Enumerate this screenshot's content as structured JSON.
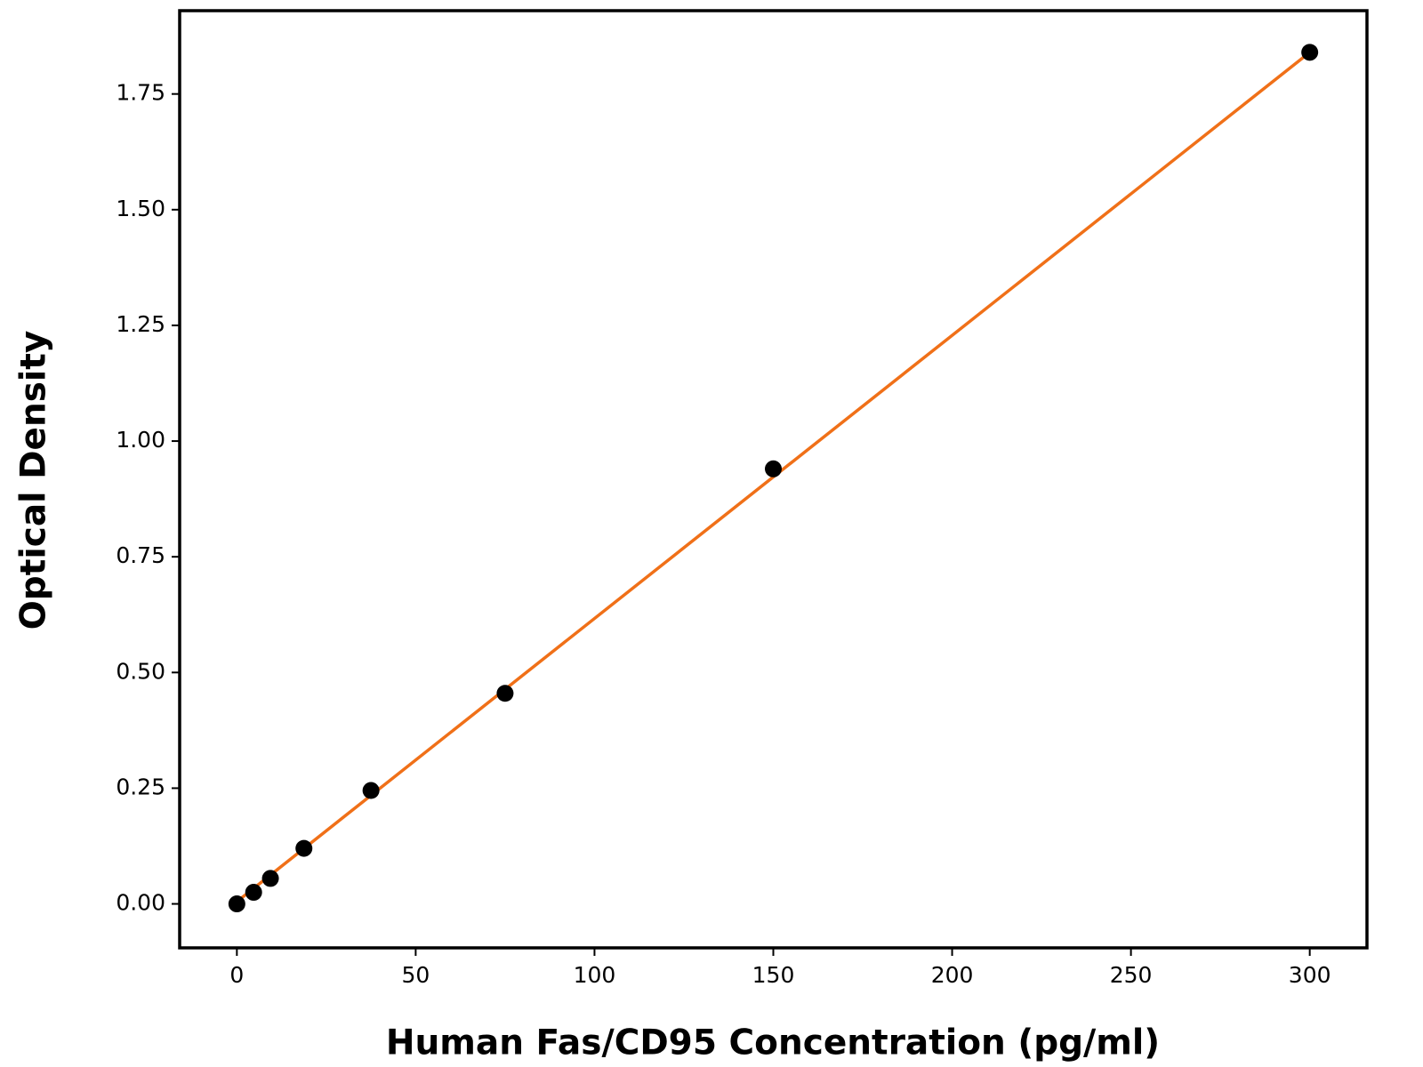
{
  "chart_data": {
    "type": "scatter",
    "x_label": "Human Fas/CD95 Concentration (pg/ml)",
    "y_label": "Optical Density",
    "series": [
      {
        "style": "markers",
        "color": "#000000",
        "x": [
          0,
          4.69,
          9.38,
          18.75,
          37.5,
          75,
          150,
          300
        ],
        "values": [
          0,
          0.025,
          0.055,
          0.12,
          0.245,
          0.455,
          0.94,
          1.84
        ]
      },
      {
        "style": "line",
        "color": "#f07018",
        "x": [
          0,
          300
        ],
        "values": [
          0.005,
          1.84
        ]
      }
    ],
    "xlim": [
      -16,
      316
    ],
    "ylim": [
      -0.095,
      1.93
    ],
    "xticks": [
      0,
      50,
      100,
      150,
      200,
      250,
      300
    ],
    "yticks": [
      {
        "value": 0,
        "label": "0.00"
      },
      0.25,
      {
        "value": 0.5,
        "label": "0.50"
      },
      0.75,
      {
        "value": 1,
        "label": "1.00"
      },
      1.25,
      {
        "value": 1.5,
        "label": "1.50"
      },
      1.75
    ],
    "grid": false
  }
}
